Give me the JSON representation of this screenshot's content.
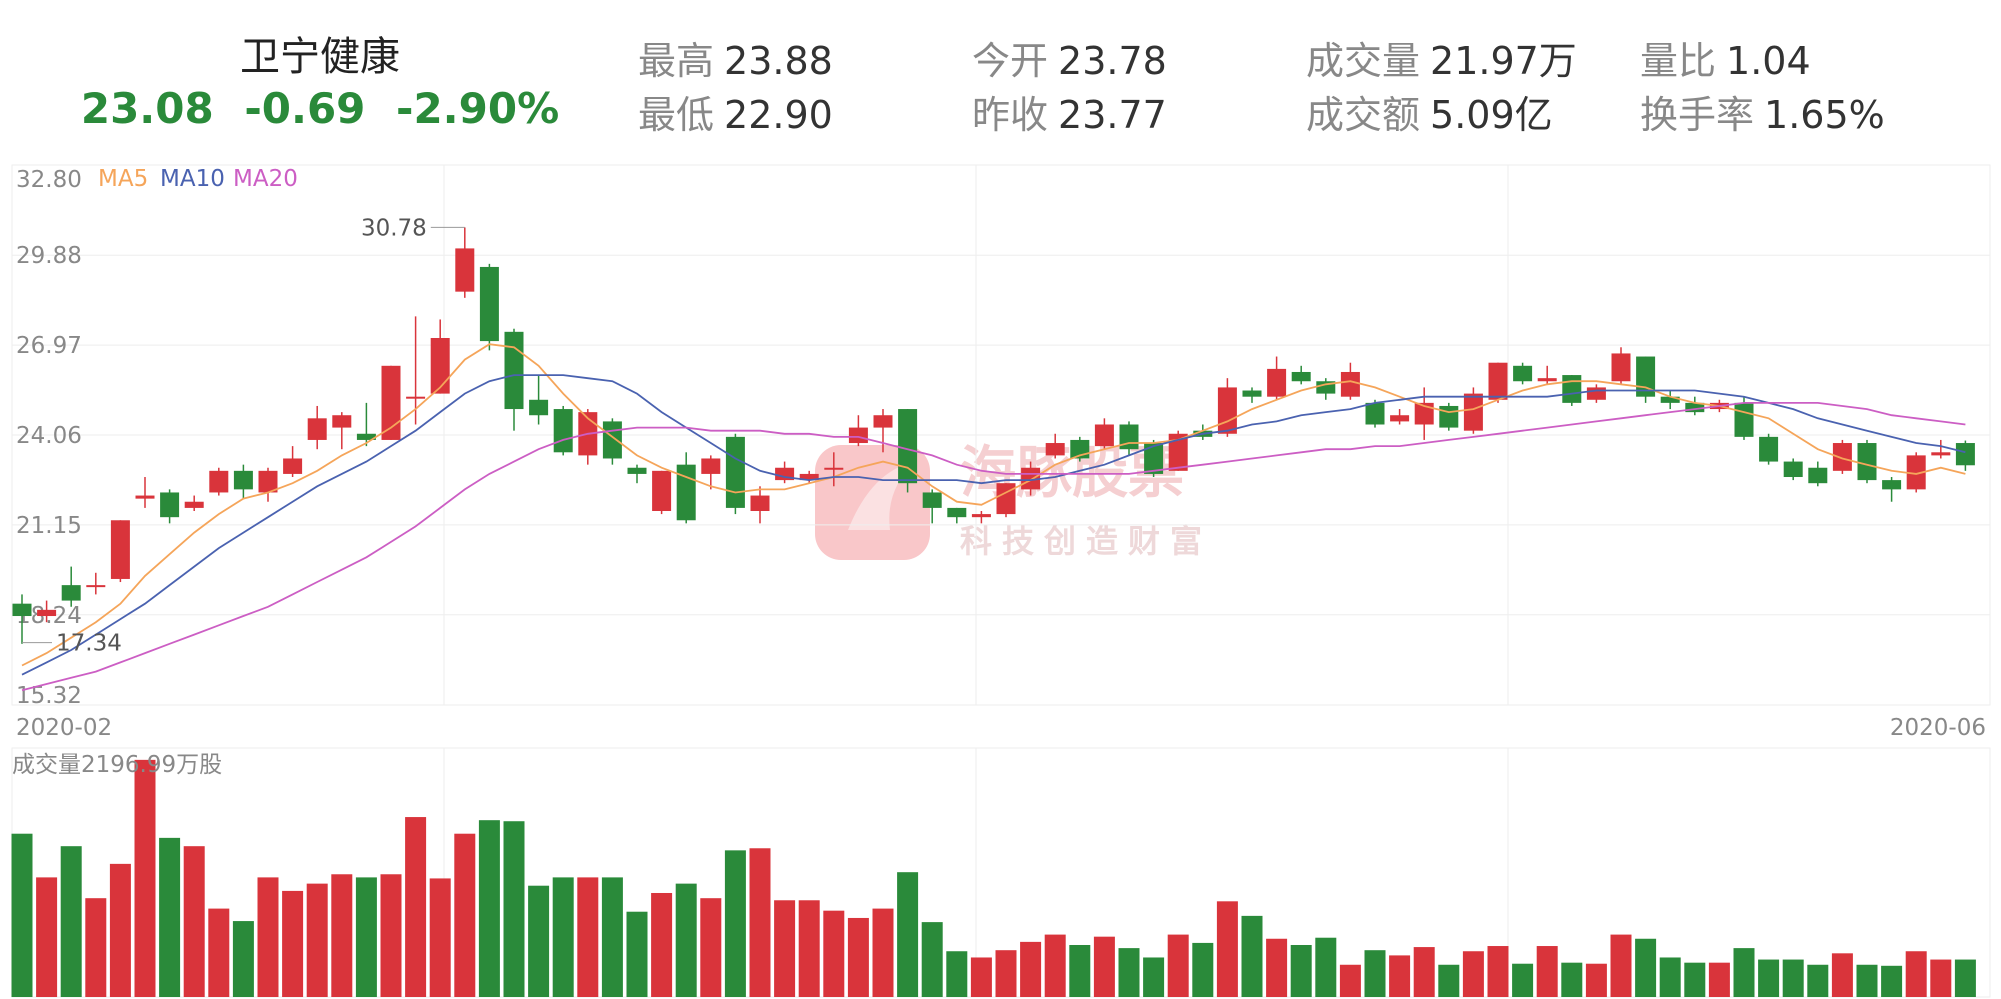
{
  "header": {
    "name": "卫宁健康",
    "price": "23.08",
    "change": "-0.69",
    "change_pct": "-2.90%",
    "stats": [
      {
        "label": "最高",
        "value": "23.88"
      },
      {
        "label": "最低",
        "value": "22.90"
      },
      {
        "label": "今开",
        "value": "23.78"
      },
      {
        "label": "昨收",
        "value": "23.77"
      },
      {
        "label": "成交量",
        "value": "21.97万"
      },
      {
        "label": "成交额",
        "value": "5.09亿"
      },
      {
        "label": "量比",
        "value": "1.04"
      },
      {
        "label": "换手率",
        "value": "1.65%"
      }
    ]
  },
  "colors": {
    "up": "#d9343b",
    "down": "#2a8a3a",
    "ma5": "#f5a55a",
    "ma10": "#4a62b0",
    "ma20": "#cc5ec4",
    "grid": "#eeeeee",
    "axis_text": "#888888"
  },
  "watermark": {
    "main": "海豚股票",
    "sub": "科技创造财富"
  },
  "chart_data": {
    "type": "candlestick",
    "price_axis": {
      "ticks": [
        "32.80",
        "29.88",
        "26.97",
        "24.06",
        "21.15",
        "18.24",
        "15.32"
      ],
      "ylim": [
        15.32,
        32.8
      ]
    },
    "x_labels": {
      "start": "2020-02",
      "end": "2020-06"
    },
    "legend": [
      "MA5",
      "MA10",
      "MA20"
    ],
    "annotations": {
      "high": "30.78",
      "low": "17.34"
    },
    "volume_label": "成交量2196.99万股",
    "candles": [
      [
        18.6,
        18.2,
        18.9,
        17.3
      ],
      [
        18.2,
        18.4,
        18.7,
        18.0
      ],
      [
        19.2,
        18.7,
        19.8,
        18.5
      ],
      [
        19.2,
        19.2,
        19.6,
        18.9
      ],
      [
        19.4,
        21.3,
        21.3,
        19.3
      ],
      [
        22.0,
        22.1,
        22.7,
        21.7
      ],
      [
        22.2,
        21.4,
        22.3,
        21.2
      ],
      [
        21.7,
        21.9,
        22.1,
        21.6
      ],
      [
        22.2,
        22.9,
        23.0,
        22.1
      ],
      [
        22.9,
        22.3,
        23.1,
        22.0
      ],
      [
        22.2,
        22.9,
        23.0,
        21.9
      ],
      [
        22.8,
        23.3,
        23.7,
        22.7
      ],
      [
        23.9,
        24.6,
        25.0,
        23.6
      ],
      [
        24.3,
        24.7,
        24.8,
        23.6
      ],
      [
        24.1,
        23.9,
        25.1,
        23.7
      ],
      [
        23.9,
        26.3,
        26.3,
        23.9
      ],
      [
        25.3,
        25.3,
        27.9,
        24.4
      ],
      [
        25.4,
        27.2,
        27.8,
        25.4
      ],
      [
        28.7,
        30.1,
        30.78,
        28.5
      ],
      [
        29.5,
        27.1,
        29.6,
        26.8
      ],
      [
        27.4,
        24.9,
        27.5,
        24.2
      ],
      [
        25.2,
        24.7,
        26.0,
        24.4
      ],
      [
        24.9,
        23.5,
        25.0,
        23.4
      ],
      [
        23.4,
        24.8,
        24.9,
        23.1
      ],
      [
        24.5,
        23.3,
        24.6,
        23.1
      ],
      [
        23.0,
        22.8,
        23.1,
        22.5
      ],
      [
        21.6,
        22.9,
        22.9,
        21.5
      ],
      [
        23.1,
        21.3,
        23.5,
        21.2
      ],
      [
        22.8,
        23.3,
        23.4,
        22.3
      ],
      [
        24.0,
        21.7,
        24.1,
        21.5
      ],
      [
        21.6,
        22.1,
        22.4,
        21.2
      ],
      [
        22.6,
        23.0,
        23.2,
        22.5
      ],
      [
        22.6,
        22.8,
        22.9,
        22.5
      ],
      [
        23.0,
        23.0,
        23.5,
        22.4
      ],
      [
        23.8,
        24.3,
        24.7,
        23.7
      ],
      [
        24.3,
        24.7,
        24.9,
        23.5
      ],
      [
        24.9,
        22.5,
        24.9,
        22.2
      ],
      [
        22.2,
        21.7,
        22.3,
        21.2
      ],
      [
        21.7,
        21.4,
        21.7,
        21.2
      ],
      [
        21.4,
        21.5,
        21.6,
        21.2
      ],
      [
        21.5,
        22.5,
        22.5,
        21.4
      ],
      [
        22.3,
        23.0,
        23.2,
        22.1
      ],
      [
        23.4,
        23.8,
        24.1,
        23.3
      ],
      [
        23.9,
        23.3,
        24.0,
        23.2
      ],
      [
        23.7,
        24.4,
        24.6,
        23.6
      ],
      [
        24.4,
        23.6,
        24.5,
        23.4
      ],
      [
        23.8,
        22.8,
        23.9,
        22.7
      ],
      [
        22.9,
        24.1,
        24.2,
        22.9
      ],
      [
        24.2,
        24.0,
        24.4,
        23.9
      ],
      [
        24.1,
        25.6,
        25.9,
        24.0
      ],
      [
        25.5,
        25.3,
        25.6,
        25.1
      ],
      [
        25.3,
        26.2,
        26.6,
        25.2
      ],
      [
        26.1,
        25.8,
        26.3,
        25.7
      ],
      [
        25.8,
        25.4,
        25.9,
        25.2
      ],
      [
        25.3,
        26.1,
        26.4,
        25.2
      ],
      [
        25.1,
        24.4,
        25.2,
        24.3
      ],
      [
        24.5,
        24.7,
        24.9,
        24.4
      ],
      [
        24.4,
        25.1,
        25.6,
        23.9
      ],
      [
        25.0,
        24.3,
        25.1,
        24.2
      ],
      [
        24.2,
        25.4,
        25.6,
        24.1
      ],
      [
        25.2,
        26.4,
        26.4,
        25.1
      ],
      [
        26.3,
        25.8,
        26.4,
        25.7
      ],
      [
        25.8,
        25.9,
        26.3,
        25.7
      ],
      [
        26.0,
        25.1,
        26.0,
        25.0
      ],
      [
        25.2,
        25.6,
        25.7,
        25.1
      ],
      [
        25.8,
        26.7,
        26.9,
        25.7
      ],
      [
        26.6,
        25.3,
        26.6,
        25.1
      ],
      [
        25.3,
        25.1,
        25.5,
        24.9
      ],
      [
        25.1,
        24.8,
        25.3,
        24.7
      ],
      [
        24.9,
        25.1,
        25.2,
        24.8
      ],
      [
        25.1,
        24.0,
        25.3,
        23.9
      ],
      [
        24.0,
        23.2,
        24.1,
        23.1
      ],
      [
        23.2,
        22.7,
        23.3,
        22.6
      ],
      [
        23.0,
        22.5,
        23.2,
        22.4
      ],
      [
        22.9,
        23.8,
        23.9,
        22.8
      ],
      [
        23.8,
        22.6,
        23.9,
        22.5
      ],
      [
        22.6,
        22.3,
        22.7,
        21.9
      ],
      [
        22.3,
        23.4,
        23.5,
        22.2
      ],
      [
        23.4,
        23.5,
        23.9,
        23.3
      ],
      [
        23.8,
        23.08,
        23.88,
        22.9
      ]
    ],
    "ma5": [
      16.6,
      17.0,
      17.5,
      18.0,
      18.6,
      19.5,
      20.2,
      20.9,
      21.5,
      22.0,
      22.2,
      22.5,
      22.9,
      23.4,
      23.8,
      24.3,
      24.9,
      25.6,
      26.5,
      27.0,
      26.9,
      26.3,
      25.4,
      24.6,
      24.0,
      23.4,
      23.0,
      22.7,
      22.4,
      22.2,
      22.3,
      22.3,
      22.5,
      22.7,
      23.0,
      23.2,
      23.0,
      22.4,
      21.9,
      21.8,
      22.2,
      22.6,
      23.1,
      23.4,
      23.6,
      23.8,
      23.8,
      23.9,
      24.2,
      24.5,
      24.9,
      25.2,
      25.5,
      25.7,
      25.8,
      25.6,
      25.3,
      25.0,
      24.8,
      24.9,
      25.2,
      25.5,
      25.7,
      25.8,
      25.8,
      25.7,
      25.6,
      25.3,
      25.1,
      25.0,
      24.8,
      24.6,
      24.1,
      23.6,
      23.3,
      23.1,
      22.9,
      22.8,
      23.0,
      22.8
    ],
    "ma10": [
      16.3,
      16.7,
      17.1,
      17.6,
      18.1,
      18.6,
      19.2,
      19.8,
      20.4,
      20.9,
      21.4,
      21.9,
      22.4,
      22.8,
      23.2,
      23.7,
      24.2,
      24.8,
      25.4,
      25.8,
      26.0,
      26.0,
      26.0,
      25.9,
      25.8,
      25.4,
      24.8,
      24.3,
      23.8,
      23.3,
      22.9,
      22.7,
      22.6,
      22.7,
      22.7,
      22.6,
      22.6,
      22.6,
      22.6,
      22.5,
      22.6,
      22.6,
      22.7,
      22.9,
      23.1,
      23.4,
      23.7,
      23.9,
      24.1,
      24.2,
      24.4,
      24.5,
      24.7,
      24.8,
      24.9,
      25.1,
      25.2,
      25.3,
      25.3,
      25.3,
      25.3,
      25.3,
      25.3,
      25.4,
      25.5,
      25.5,
      25.5,
      25.5,
      25.5,
      25.4,
      25.3,
      25.1,
      24.9,
      24.6,
      24.4,
      24.2,
      24.0,
      23.8,
      23.7,
      23.5
    ],
    "ma20": [
      15.8,
      16.0,
      16.2,
      16.4,
      16.7,
      17.0,
      17.3,
      17.6,
      17.9,
      18.2,
      18.5,
      18.9,
      19.3,
      19.7,
      20.1,
      20.6,
      21.1,
      21.7,
      22.3,
      22.8,
      23.2,
      23.6,
      23.9,
      24.1,
      24.2,
      24.3,
      24.3,
      24.3,
      24.2,
      24.2,
      24.2,
      24.1,
      24.1,
      24.0,
      24.0,
      23.8,
      23.6,
      23.4,
      23.1,
      22.9,
      22.8,
      22.8,
      22.8,
      22.8,
      22.8,
      22.8,
      22.9,
      23.0,
      23.1,
      23.2,
      23.3,
      23.4,
      23.5,
      23.6,
      23.6,
      23.7,
      23.7,
      23.8,
      23.9,
      24.0,
      24.1,
      24.2,
      24.3,
      24.4,
      24.5,
      24.6,
      24.7,
      24.8,
      24.9,
      25.0,
      25.1,
      25.1,
      25.1,
      25.1,
      25.0,
      24.9,
      24.7,
      24.6,
      24.5,
      24.4
    ],
    "volume": [
      1570,
      1150,
      1450,
      950,
      1280,
      2280,
      1530,
      1450,
      850,
      730,
      1150,
      1020,
      1090,
      1180,
      1150,
      1180,
      1730,
      1140,
      1570,
      1700,
      1690,
      1070,
      1150,
      1150,
      1150,
      820,
      1000,
      1090,
      950,
      1410,
      1430,
      930,
      930,
      830,
      760,
      850,
      1200,
      720,
      440,
      380,
      450,
      530,
      600,
      500,
      580,
      470,
      380,
      600,
      520,
      920,
      780,
      560,
      500,
      570,
      310,
      450,
      400,
      480,
      310,
      440,
      490,
      320,
      490,
      330,
      320,
      600,
      560,
      380,
      330,
      330,
      470,
      360,
      360,
      310,
      420,
      310,
      300,
      440,
      360,
      360
    ]
  }
}
